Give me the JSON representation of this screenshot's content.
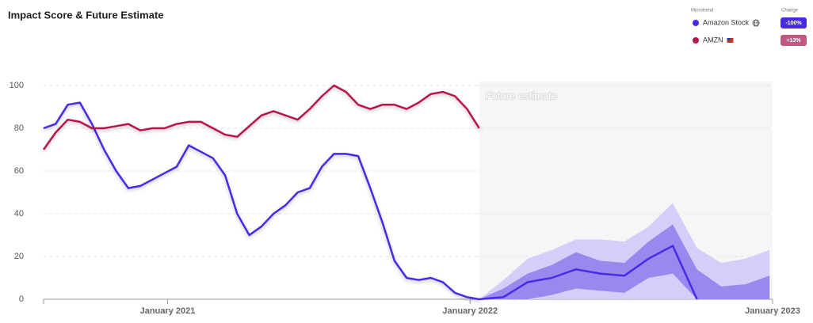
{
  "chart_data": {
    "type": "line",
    "title": "Impact Score & Future Estimate",
    "legend_header": "Microtrend",
    "change_header": "Change",
    "annotation": "Future estimate",
    "forecast_start": 2022.03,
    "x": [
      2020.59,
      2020.63,
      2020.67,
      2020.71,
      2020.75,
      2020.79,
      2020.83,
      2020.87,
      2020.91,
      2020.95,
      2020.99,
      2021.03,
      2021.07,
      2021.11,
      2021.15,
      2021.19,
      2021.23,
      2021.27,
      2021.31,
      2021.35,
      2021.39,
      2021.43,
      2021.47,
      2021.51,
      2021.55,
      2021.59,
      2021.63,
      2021.67,
      2021.71,
      2021.75,
      2021.79,
      2021.83,
      2021.87,
      2021.91,
      2021.95,
      2021.99,
      2022.03
    ],
    "series": [
      {
        "name": "Amazon Stock",
        "color": "#4a2ae6",
        "change": "-100%",
        "change_color": "#4a2ae6",
        "values": [
          80,
          82,
          91,
          92,
          82,
          70,
          60,
          52,
          53,
          56,
          59,
          62,
          72,
          69,
          66,
          58,
          40,
          30,
          34,
          40,
          44,
          50,
          52,
          62,
          68,
          68,
          67,
          52,
          36,
          18,
          10,
          9,
          10,
          8,
          3,
          1,
          0
        ]
      },
      {
        "name": "AMZN",
        "color": "#b8174a",
        "change": "+13%",
        "change_color": "#c0587f",
        "values": [
          70,
          78,
          84,
          83,
          80,
          80,
          81,
          82,
          79,
          80,
          80,
          82,
          83,
          83,
          80,
          77,
          76,
          81,
          86,
          88,
          86,
          84,
          89,
          95,
          100,
          97,
          91,
          89,
          91,
          91,
          89,
          92,
          96,
          97,
          95,
          89,
          80
        ]
      }
    ],
    "future_x": [
      2022.03,
      2022.11,
      2022.19,
      2022.27,
      2022.35,
      2022.43,
      2022.51,
      2022.59,
      2022.67,
      2022.75,
      2022.83,
      2022.91,
      2022.99
    ],
    "bands": [
      {
        "color": "#d6cef8",
        "lower": [
          0,
          0,
          0,
          0,
          0,
          0,
          0,
          0,
          0,
          0,
          0,
          0,
          0
        ],
        "upper": [
          0,
          9,
          19,
          23,
          28,
          28,
          27,
          34,
          45,
          24,
          17,
          19,
          23
        ]
      },
      {
        "color": "#9b88ef",
        "lower": [
          0,
          0,
          0,
          2,
          5,
          4,
          3,
          10,
          12,
          0,
          0,
          0,
          0
        ],
        "upper": [
          0,
          5,
          12,
          16,
          22,
          18,
          17,
          27,
          35,
          14,
          6,
          7,
          11
        ]
      }
    ],
    "median": {
      "color": "#4a2ae6",
      "values": [
        0,
        1,
        8,
        10,
        14,
        12,
        11,
        19,
        25,
        0,
        null,
        null,
        null
      ]
    },
    "xlim": [
      2020.59,
      2023.0
    ],
    "xticks": [
      {
        "value": 2021.0,
        "label": "January 2021"
      },
      {
        "value": 2022.0,
        "label": "January 2022"
      },
      {
        "value": 2023.0,
        "label": "January 2023"
      }
    ],
    "ylim": [
      0,
      100
    ],
    "yticks": [
      0,
      20,
      40,
      60,
      80,
      100
    ],
    "grid": true
  }
}
